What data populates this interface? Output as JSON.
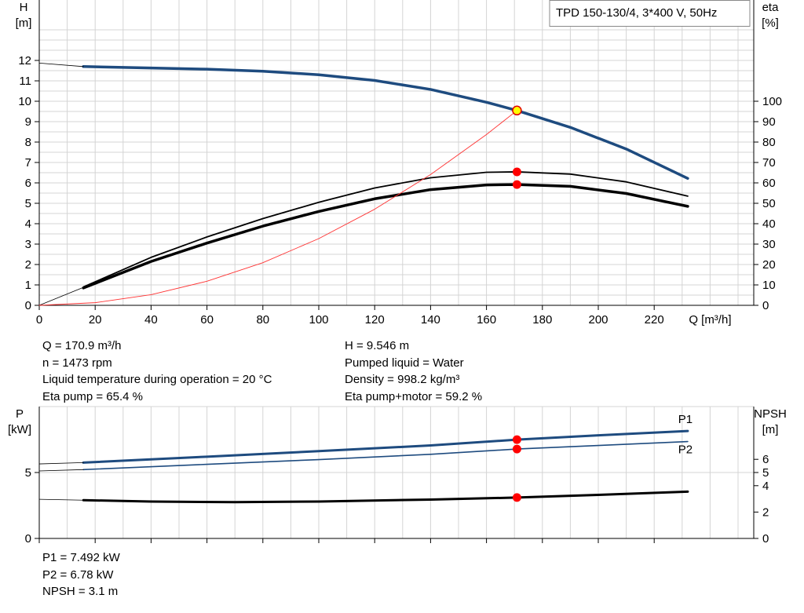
{
  "chart_data": [
    {
      "type": "line",
      "title": "TPD 150-130/4, 3*400 V, 50Hz",
      "xlabel": "Q [m³/h]",
      "ylabel": "H [m]",
      "ylabel_lines": [
        "H",
        "[m]"
      ],
      "y2label": "eta [%]",
      "y2label_lines": [
        "eta",
        "[%]"
      ],
      "xlim": [
        0,
        250
      ],
      "ylim": [
        0,
        13.5
      ],
      "y2lim": [
        0,
        135
      ],
      "x_ticks": [
        0,
        20,
        40,
        60,
        80,
        100,
        120,
        140,
        160,
        180,
        200,
        220
      ],
      "y_ticks": [
        0,
        1,
        2,
        3,
        4,
        5,
        6,
        7,
        8,
        9,
        10,
        11,
        12
      ],
      "y2_ticks": [
        0,
        10,
        20,
        30,
        40,
        50,
        60,
        70,
        80,
        90,
        100
      ],
      "grid": true,
      "series": [
        {
          "id": "head",
          "axis": "left",
          "color": "#1e4b7f",
          "x": [
            15.8,
            40,
            60,
            80,
            100,
            120,
            140,
            160,
            170.9,
            190,
            210,
            232
          ],
          "y": [
            11.7,
            11.63,
            11.57,
            11.47,
            11.3,
            11.02,
            10.58,
            9.95,
            9.546,
            8.72,
            7.66,
            6.22
          ]
        },
        {
          "id": "head-extension",
          "axis": "left",
          "color": "#000000",
          "x": [
            0,
            15.8
          ],
          "y": [
            11.87,
            11.7
          ]
        },
        {
          "id": "eta-pump",
          "axis": "right",
          "color": "#000000",
          "x": [
            15.8,
            40,
            60,
            80,
            100,
            120,
            140,
            160,
            170.9,
            190,
            210,
            232
          ],
          "y": [
            9,
            23.5,
            33.5,
            42.5,
            50.5,
            57.5,
            62.5,
            65.2,
            65.4,
            64.3,
            60.5,
            53.5
          ]
        },
        {
          "id": "eta-pump-motor",
          "axis": "right",
          "color": "#000000",
          "x": [
            15.8,
            40,
            60,
            80,
            100,
            120,
            140,
            160,
            170.9,
            190,
            210,
            232
          ],
          "y": [
            8.5,
            21.5,
            30.5,
            38.8,
            46,
            52.2,
            56.7,
            59,
            59.2,
            58.3,
            54.8,
            48.5
          ]
        },
        {
          "id": "eta-extension",
          "axis": "right",
          "color": "#000000",
          "x": [
            0,
            15.8
          ],
          "y": [
            0,
            8.8
          ]
        },
        {
          "id": "system-curve",
          "axis": "left",
          "color": "#ff3333",
          "x": [
            0,
            20,
            40,
            60,
            80,
            100,
            120,
            140,
            160,
            170.9
          ],
          "y": [
            0,
            0.13,
            0.52,
            1.18,
            2.09,
            3.27,
            4.71,
            6.41,
            8.37,
            9.546
          ]
        }
      ],
      "markers": [
        {
          "axis": "left",
          "x": 170.9,
          "y": 9.546,
          "color": "#ffff00",
          "stroke": "#e00000"
        },
        {
          "axis": "right",
          "x": 170.9,
          "y": 65.4,
          "color": "#ff0000"
        },
        {
          "axis": "right",
          "x": 170.9,
          "y": 59.2,
          "color": "#ff0000"
        }
      ]
    },
    {
      "type": "line",
      "ylabel": "P [kW]",
      "ylabel_lines": [
        "P",
        "[kW]"
      ],
      "y2label": "NPSH [m]",
      "y2label_lines": [
        "NPSH",
        "[m]"
      ],
      "xlim": [
        0,
        250
      ],
      "ylim": [
        0,
        10
      ],
      "y2lim": [
        0,
        10
      ],
      "y_ticks": [
        0,
        5
      ],
      "y2_ticks": [
        0,
        2,
        4,
        5,
        6
      ],
      "grid": true,
      "series": [
        {
          "id": "p1",
          "name": "P1",
          "axis": "left",
          "color": "#1e4b7f",
          "x": [
            15.8,
            60,
            100,
            140,
            170.9,
            200,
            232
          ],
          "y": [
            5.75,
            6.2,
            6.62,
            7.05,
            7.492,
            7.82,
            8.15
          ]
        },
        {
          "id": "p2",
          "name": "P2",
          "axis": "left",
          "color": "#1e4b7f",
          "x": [
            15.8,
            60,
            100,
            140,
            170.9,
            200,
            232
          ],
          "y": [
            5.22,
            5.62,
            5.98,
            6.38,
            6.78,
            7.05,
            7.35
          ]
        },
        {
          "id": "p1-extension",
          "axis": "left",
          "color": "#000000",
          "x": [
            0,
            15.8
          ],
          "y": [
            5.65,
            5.75
          ]
        },
        {
          "id": "p2-extension",
          "axis": "left",
          "color": "#000000",
          "x": [
            0,
            15.8
          ],
          "y": [
            5.12,
            5.22
          ]
        },
        {
          "id": "npsh",
          "axis": "right",
          "color": "#000000",
          "x": [
            15.8,
            40,
            70,
            100,
            140,
            170.9,
            200,
            232
          ],
          "y": [
            2.9,
            2.8,
            2.75,
            2.8,
            2.95,
            3.1,
            3.3,
            3.55
          ]
        },
        {
          "id": "npsh-extension",
          "axis": "right",
          "color": "#000000",
          "x": [
            0,
            15.8
          ],
          "y": [
            2.97,
            2.9
          ]
        }
      ],
      "markers": [
        {
          "axis": "left",
          "x": 170.9,
          "y": 7.492,
          "color": "#ff0000"
        },
        {
          "axis": "left",
          "x": 170.9,
          "y": 6.78,
          "color": "#ff0000"
        },
        {
          "axis": "right",
          "x": 170.9,
          "y": 3.1,
          "color": "#ff0000"
        }
      ]
    }
  ],
  "duty_point": {
    "left": [
      "Q = 170.9 m³/h",
      "n = 1473 rpm",
      "Liquid temperature during operation = 20 °C",
      "Eta pump = 65.4 %"
    ],
    "right": [
      "H = 9.546 m",
      "Pumped liquid = Water",
      "Density = 998.2 kg/m³",
      "Eta pump+motor = 59.2 %"
    ]
  },
  "power_values": [
    "P1 = 7.492 kW",
    "P2 = 6.78 kW",
    "NPSH = 3.1 m"
  ]
}
